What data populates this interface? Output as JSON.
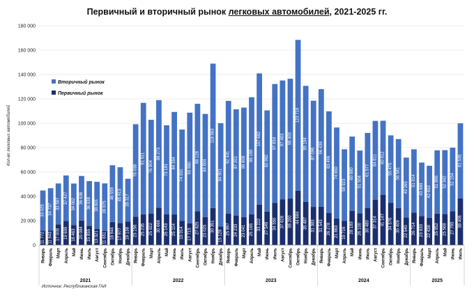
{
  "title": {
    "prefix": "Первичный и вторичный рынок ",
    "underlined": "легковых автомобилей",
    "suffix": ", 2021-2025 гг."
  },
  "source": "Источник: Республиканская ГАИ",
  "chart_data": {
    "type": "bar",
    "stacked": true,
    "ylabel": "Кол-во легковых автомобилей",
    "ylim": [
      0,
      180000
    ],
    "yticks": [
      0,
      20000,
      40000,
      60000,
      80000,
      100000,
      120000,
      140000,
      160000,
      180000
    ],
    "ytick_labels": [
      "0",
      "20 000",
      "40 000",
      "60 000",
      "80 000",
      "100 000",
      "120 000",
      "140 000",
      "160 000",
      "180 000"
    ],
    "grid": true,
    "legend_position": "top-left",
    "colors": {
      "primary": "#1b2f6e",
      "secondary": "#4472c4",
      "grid": "#d9d9d9"
    },
    "categories": [
      "Январь",
      "Февраль",
      "Март",
      "Апрель",
      "Май",
      "Июнь",
      "Июль",
      "Август",
      "Сентябрь",
      "Октябрь",
      "Ноябрь",
      "Декабрь",
      "Январь",
      "Февраль",
      "Март",
      "Апрель",
      "Май",
      "Июнь",
      "Июль",
      "Август",
      "Сентябрь",
      "Октябрь",
      "Ноябрь",
      "Декабрь",
      "Январь",
      "Февраль",
      "Март",
      "Апрель",
      "Май",
      "Июнь",
      "Июль",
      "Август",
      "Сентябрь",
      "Октябрь",
      "Ноябрь",
      "Декабрь",
      "Январь",
      "Февраль",
      "Март",
      "Апрель",
      "Май",
      "Июнь",
      "Июль",
      "Август",
      "Сентябрь",
      "Октябрь",
      "Ноябрь",
      "Декабрь",
      "Январь",
      "Февраль",
      "Март",
      "Апрель",
      "Май",
      "Июнь",
      "Июль"
    ],
    "years": [
      {
        "label": "2021",
        "count": 12
      },
      {
        "label": "2022",
        "count": 12
      },
      {
        "label": "2023",
        "count": 12
      },
      {
        "label": "2024",
        "count": 12
      },
      {
        "label": "2025",
        "count": 7
      }
    ],
    "series": [
      {
        "name": "Первичный рынок",
        "values": [
          11772,
          11943,
          17008,
          19699,
          16463,
          20084,
          15855,
          13321,
          11651,
          18944,
          17977,
          19138,
          23156,
          25235,
          25922,
          30668,
          25143,
          25114,
          19914,
          17715,
          27825,
          23025,
          30351,
          15128,
          25897,
          24233,
          23041,
          25165,
          33222,
          27549,
          34550,
          37628,
          38200,
          44684,
          35487,
          31383,
          31543,
          26278,
          21863,
          19716,
          28189,
          26100,
          30480,
          37314,
          41147,
          34576,
          30409,
          22540,
          26714,
          23833,
          22438,
          25852,
          25568,
          27795,
          38406
        ],
        "labels": [
          "11 772",
          "11 943",
          "17 008",
          "19 699",
          "16 463",
          "20 084",
          "15 855",
          "13 321",
          "11 651",
          "18 944",
          "17 977",
          "19 138",
          "23 156",
          "25 235",
          "25 922",
          "30 668",
          "25 143",
          "25 114",
          "19 914",
          "17 715",
          "27 825",
          "23 025",
          "30 351",
          "15 128",
          "25 897",
          "24 233",
          "23 041",
          "25 165",
          "33 222",
          "27 549",
          "34 550",
          "37 628",
          "38 200",
          "44 684",
          "35 487",
          "31 383",
          "31 543",
          "26 278",
          "21 863",
          "19 716",
          "28 189",
          "26 100",
          "30 480",
          "37 314",
          "41 147",
          "34 576",
          "30 409",
          "22 540",
          "26 714",
          "23 833",
          "22 438",
          "25 852",
          "25 568",
          "27 795",
          "38 406"
        ]
      },
      {
        "name": "Вторичный рынок",
        "values": [
          33025,
          34737,
          33587,
          37427,
          34062,
          36636,
          36638,
          38601,
          38975,
          46559,
          45913,
          35317,
          76036,
          91511,
          76904,
          88273,
          73181,
          84164,
          74931,
          90980,
          88128,
          84604,
          118563,
          84901,
          92441,
          87201,
          89808,
          96189,
          107682,
          82982,
          97654,
          97463,
          98300,
          123719,
          95194,
          87096,
          96439,
          83496,
          74650,
          58923,
          60880,
          51504,
          61577,
          64611,
          60912,
          55475,
          56581,
          49265,
          51914,
          43889,
          42653,
          51896,
          52342,
          52154,
          61535
        ],
        "labels": [
          "33 025",
          "34 737",
          "33 587",
          "37 427",
          "34 062",
          "36 636",
          "36 638",
          "38 601",
          "38 975",
          "46 559",
          "45 913",
          "35 317",
          "76 036",
          "91 511",
          "76 904",
          "88 273",
          "73 181",
          "84 164",
          "74 931",
          "90 980",
          "88 128",
          "84 604",
          "118 563",
          "84 901",
          "92 441",
          "87 201",
          "89 808",
          "96 189",
          "107 682",
          "82 982",
          "97 654",
          "97 463",
          "98 300",
          "123 719",
          "95 194",
          "87 096",
          "96 439",
          "83 496",
          "74 650",
          "58 923",
          "60 880",
          "51 504",
          "61 577",
          "64 611",
          "60 912",
          "55 475",
          "56 581",
          "49 265",
          "51 914",
          "43 889",
          "42 653",
          "51 896",
          "52 342",
          "52 154",
          "61 535"
        ]
      }
    ]
  }
}
